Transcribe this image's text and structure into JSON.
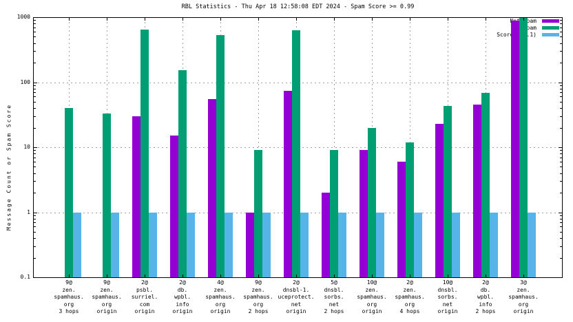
{
  "title": "RBL Statistics - Thu Apr 18 12:58:08 EDT 2024 - Spam Score >= 0.99",
  "y_axis": {
    "label": "Message Count or Spam Score",
    "scale": "log",
    "min": 0.1,
    "max": 1000,
    "tick_labels": [
      "1000",
      "100",
      "10",
      "1",
      "0.1"
    ]
  },
  "legend": {
    "position": "top-right-inside",
    "entries": [
      {
        "label": "Not Spam",
        "color": "#9400d3"
      },
      {
        "label": "Spam",
        "color": "#009e73"
      },
      {
        "label": "Score (0..1)",
        "color": "#56b4e9"
      }
    ]
  },
  "chart_data": {
    "type": "bar",
    "title": "RBL Statistics - Thu Apr 18 12:58:08 EDT 2024 - Spam Score >= 0.99",
    "xlabel": "",
    "ylabel": "Message Count or Spam Score",
    "y_scale": "log",
    "ylim": [
      0.1,
      1000
    ],
    "grid": true,
    "legend_position": "top-right-inside",
    "categories": [
      [
        "9@",
        "zen.",
        "spamhaus.",
        "org",
        "3 hops"
      ],
      [
        "9@",
        "zen.",
        "spamhaus.",
        "org",
        "origin"
      ],
      [
        "2@",
        "psbl.",
        "surriel.",
        "com",
        "origin"
      ],
      [
        "2@",
        "db.",
        "wpbl.",
        "info",
        "origin"
      ],
      [
        "4@",
        "zen.",
        "spamhaus.",
        "org",
        "origin"
      ],
      [
        "9@",
        "zen.",
        "spamhaus.",
        "org",
        "2 hops"
      ],
      [
        "2@",
        "dnsbl-1.",
        "uceprotect.",
        "net",
        "origin"
      ],
      [
        "5@",
        "dnsbl.",
        "sorbs.",
        "net",
        "2 hops"
      ],
      [
        "10@",
        "zen.",
        "spamhaus.",
        "org",
        "origin"
      ],
      [
        "2@",
        "zen.",
        "spamhaus.",
        "org",
        "4 hops"
      ],
      [
        "10@",
        "dnsbl.",
        "sorbs.",
        "net",
        "origin"
      ],
      [
        "2@",
        "db.",
        "wpbl.",
        "info",
        "2 hops"
      ],
      [
        "3@",
        "zen.",
        "spamhaus.",
        "org",
        "origin"
      ]
    ],
    "series": [
      {
        "name": "Not Spam",
        "color": "#9400d3",
        "values": [
          null,
          null,
          30,
          15,
          55,
          1,
          73,
          2,
          9,
          6,
          23,
          45,
          890
        ]
      },
      {
        "name": "Spam",
        "color": "#009e73",
        "values": [
          40,
          33,
          640,
          155,
          530,
          9,
          630,
          9,
          20,
          12,
          43,
          68,
          1000
        ]
      },
      {
        "name": "Score (0..1)",
        "color": "#56b4e9",
        "values": [
          1,
          1,
          1,
          1,
          1,
          1,
          1,
          1,
          1,
          1,
          1,
          1,
          1
        ]
      }
    ]
  }
}
